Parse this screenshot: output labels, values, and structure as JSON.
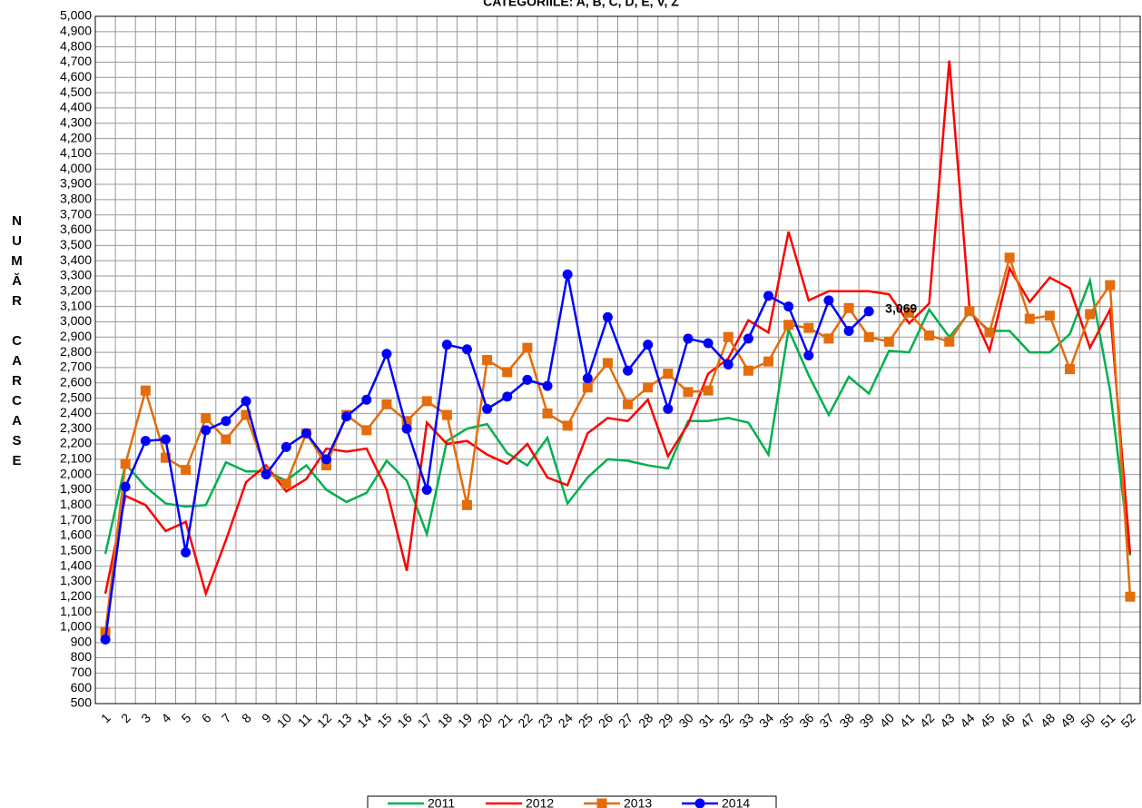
{
  "chart_data": {
    "type": "line",
    "title": "CATEGORIILE: A, B, C, D, E, V, Z",
    "y_label": "NUMĂR CARCASE",
    "categories": [
      "1",
      "2",
      "3",
      "4",
      "5",
      "6",
      "7",
      "8",
      "9",
      "10",
      "11",
      "12",
      "13",
      "14",
      "15",
      "16",
      "17",
      "18",
      "19",
      "20",
      "21",
      "22",
      "23",
      "24",
      "25",
      "26",
      "27",
      "28",
      "29",
      "30",
      "31",
      "32",
      "33",
      "34",
      "35",
      "36",
      "37",
      "38",
      "39",
      "40",
      "41",
      "42",
      "43",
      "44",
      "45",
      "46",
      "47",
      "48",
      "49",
      "50",
      "51",
      "52"
    ],
    "series": [
      {
        "name": "2011",
        "color": "#00b050",
        "marker": "none",
        "values": [
          1480,
          2070,
          1920,
          1810,
          1790,
          1800,
          2080,
          2020,
          2020,
          1960,
          2060,
          1900,
          1820,
          1880,
          2090,
          1960,
          1610,
          2220,
          2300,
          2330,
          2140,
          2060,
          2240,
          1810,
          1980,
          2100,
          2090,
          2060,
          2040,
          2350,
          2350,
          2370,
          2340,
          2130,
          2950,
          2650,
          2390,
          2640,
          2530,
          2810,
          2800,
          3080,
          2900,
          3060,
          2940,
          2940,
          2800,
          2800,
          2920,
          3270,
          2550,
          1470
        ]
      },
      {
        "name": "2012",
        "color": "#ff0000",
        "marker": "none",
        "values": [
          1220,
          1860,
          1800,
          1630,
          1690,
          1220,
          1570,
          1950,
          2060,
          1890,
          1970,
          2170,
          2150,
          2170,
          1900,
          1370,
          2340,
          2200,
          2220,
          2130,
          2070,
          2200,
          1980,
          1930,
          2270,
          2370,
          2350,
          2490,
          2120,
          2330,
          2660,
          2760,
          3010,
          2930,
          3590,
          3140,
          3200,
          3200,
          3200,
          3180,
          2990,
          3120,
          4710,
          3100,
          2810,
          3350,
          3130,
          3290,
          3220,
          2830,
          3080,
          1480
        ]
      },
      {
        "name": "2013",
        "color": "#e46c0a",
        "marker": "square",
        "values": [
          970,
          2070,
          2550,
          2110,
          2030,
          2370,
          2230,
          2390,
          2020,
          1940,
          2270,
          2060,
          2390,
          2290,
          2460,
          2350,
          2480,
          2390,
          1800,
          2750,
          2670,
          2830,
          2400,
          2320,
          2570,
          2730,
          2460,
          2570,
          2660,
          2540,
          2550,
          2900,
          2680,
          2740,
          2980,
          2960,
          2890,
          3090,
          2900,
          2870,
          3060,
          2910,
          2870,
          3070,
          2930,
          3420,
          3020,
          3040,
          2690,
          3050,
          3240,
          1200
        ]
      },
      {
        "name": "2014",
        "color": "#0000ff",
        "marker": "circle",
        "values": [
          920,
          1920,
          2220,
          2230,
          1490,
          2290,
          2350,
          2480,
          2000,
          2180,
          2270,
          2100,
          2380,
          2490,
          2790,
          2300,
          1900,
          2850,
          2820,
          2430,
          2510,
          2620,
          2580,
          3310,
          2630,
          3030,
          2680,
          2850,
          2430,
          2890,
          2860,
          2720,
          2890,
          3170,
          3100,
          2780,
          3140,
          2940,
          3069,
          null,
          null,
          null,
          null,
          null,
          null,
          null,
          null,
          null,
          null,
          null,
          null,
          null
        ],
        "value_labels": [
          null,
          null,
          null,
          null,
          null,
          null,
          null,
          null,
          null,
          null,
          null,
          null,
          null,
          null,
          null,
          null,
          null,
          null,
          null,
          null,
          null,
          null,
          null,
          null,
          null,
          null,
          null,
          null,
          null,
          null,
          null,
          null,
          null,
          null,
          null,
          null,
          null,
          null,
          "3,069",
          null,
          null,
          null,
          null,
          null,
          null,
          null,
          null,
          null,
          null,
          null,
          null,
          null
        ]
      }
    ],
    "ylim": [
      500,
      5000
    ],
    "yticks": [
      500,
      600,
      700,
      800,
      900,
      {
        "value": 1000,
        "label": "1,000"
      },
      {
        "value": 1100,
        "label": "1,100"
      },
      {
        "value": 1200,
        "label": "1,200"
      },
      {
        "value": 1300,
        "label": "1,300"
      },
      {
        "value": 1400,
        "label": "1,400"
      },
      {
        "value": 1500,
        "label": "1,500"
      },
      {
        "value": 1600,
        "label": "1,600"
      },
      {
        "value": 1700,
        "label": "1,700"
      },
      {
        "value": 1800,
        "label": "1,800"
      },
      {
        "value": 1900,
        "label": "1,900"
      },
      {
        "value": 2000,
        "label": "2,000"
      },
      {
        "value": 2100,
        "label": "2,100"
      },
      {
        "value": 2200,
        "label": "2,200"
      },
      {
        "value": 2300,
        "label": "2,300"
      },
      {
        "value": 2400,
        "label": "2,400"
      },
      {
        "value": 2500,
        "label": "2,500"
      },
      {
        "value": 2600,
        "label": "2,600"
      },
      {
        "value": 2700,
        "label": "2,700"
      },
      {
        "value": 2800,
        "label": "2,800"
      },
      {
        "value": 2900,
        "label": "2,900"
      },
      {
        "value": 3000,
        "label": "3,000"
      },
      {
        "value": 3100,
        "label": "3,100"
      },
      {
        "value": 3200,
        "label": "3,200"
      },
      {
        "value": 3300,
        "label": "3,300"
      },
      {
        "value": 3400,
        "label": "3,400"
      },
      {
        "value": 3500,
        "label": "3,500"
      },
      {
        "value": 3600,
        "label": "3,600"
      },
      {
        "value": 3700,
        "label": "3,700"
      },
      {
        "value": 3800,
        "label": "3,800"
      },
      {
        "value": 3900,
        "label": "3,900"
      },
      {
        "value": 4000,
        "label": "4,000"
      },
      {
        "value": 4100,
        "label": "4,100"
      },
      {
        "value": 4200,
        "label": "4,200"
      },
      {
        "value": 4300,
        "label": "4,300"
      },
      {
        "value": 4400,
        "label": "4,400"
      },
      {
        "value": 4500,
        "label": "4,500"
      },
      {
        "value": 4600,
        "label": "4,600"
      },
      {
        "value": 4700,
        "label": "4,700"
      },
      {
        "value": 4800,
        "label": "4,800"
      },
      {
        "value": 4900,
        "label": "4,900"
      },
      {
        "value": 5000,
        "label": "5,000"
      }
    ],
    "grid": true,
    "legend": "bottom"
  }
}
